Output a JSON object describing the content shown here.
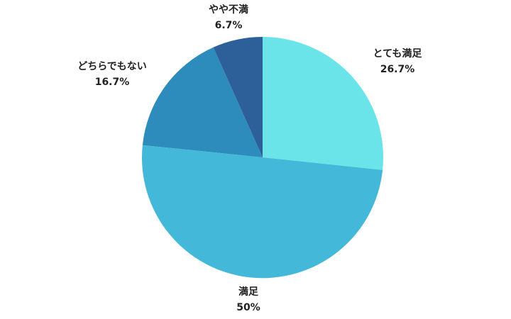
{
  "chart_data": {
    "type": "pie",
    "title": "",
    "start_angle_deg": 0,
    "direction": "clockwise",
    "slices": [
      {
        "label": "とても満足",
        "value": 26.7,
        "value_label": "26.7%",
        "color": "#6be4e9"
      },
      {
        "label": "満足",
        "value": 50,
        "value_label": "50%",
        "color": "#43b8d8"
      },
      {
        "label": "どちらでもない",
        "value": 16.7,
        "value_label": "16.7%",
        "color": "#2e8cbc"
      },
      {
        "label": "やや不満",
        "value": 6.7,
        "value_label": "6.7%",
        "color": "#2d5f99"
      }
    ]
  }
}
